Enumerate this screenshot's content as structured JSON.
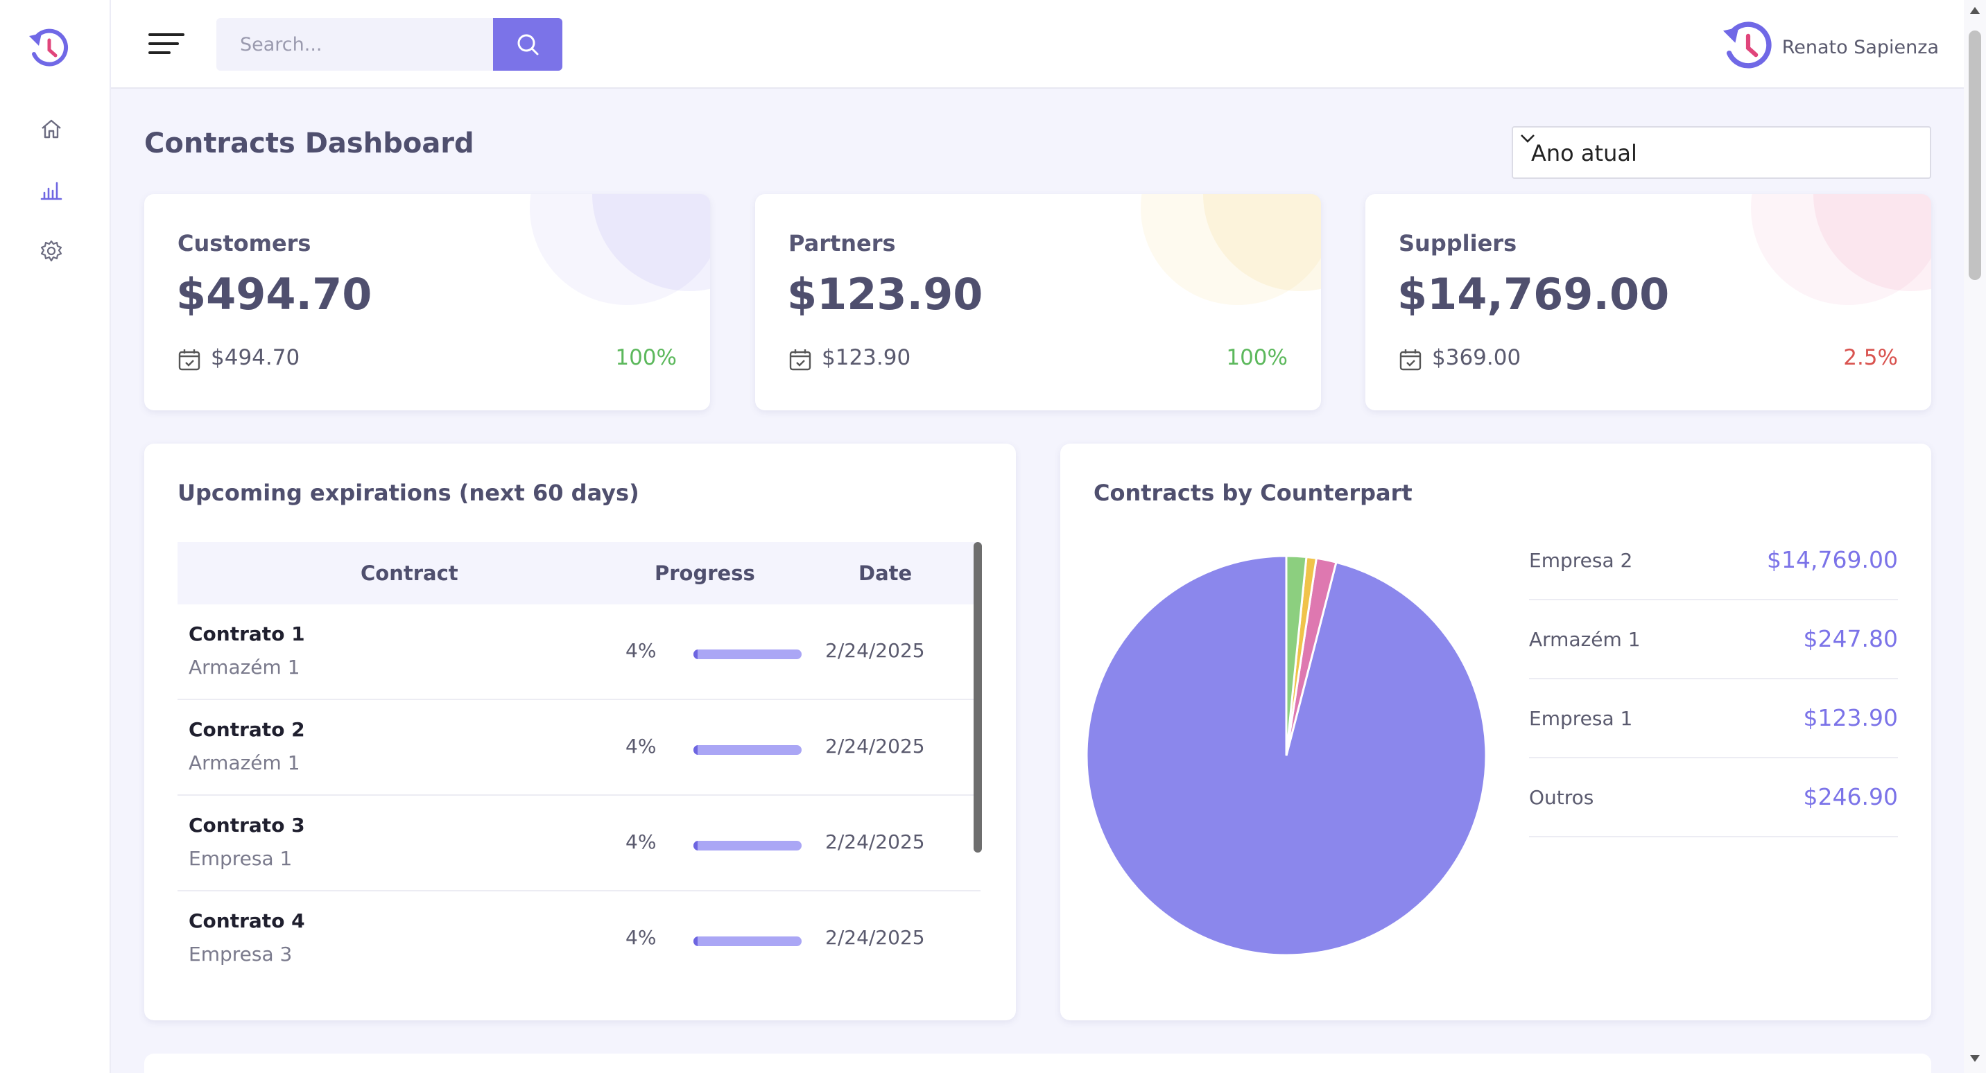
{
  "header": {
    "search_placeholder": "Search...",
    "user_name": "Renato Sapienza"
  },
  "page": {
    "title": "Contracts Dashboard",
    "period_selected": "Ano atual"
  },
  "stats": [
    {
      "label": "Customers",
      "value": "$494.70",
      "sub_value": "$494.70",
      "percent": "100%",
      "percent_color": "#5cb85c",
      "accent": "#7b73e8"
    },
    {
      "label": "Partners",
      "value": "$123.90",
      "sub_value": "$123.90",
      "percent": "100%",
      "percent_color": "#5cb85c",
      "accent": "#f0c34a"
    },
    {
      "label": "Suppliers",
      "value": "$14,769.00",
      "sub_value": "$369.00",
      "percent": "2.5%",
      "percent_color": "#d9534f",
      "accent": "#e979a8"
    }
  ],
  "expirations": {
    "title": "Upcoming expirations (next 60 days)",
    "columns": [
      "Contract",
      "Progress",
      "Date"
    ],
    "rows": [
      {
        "contract": "Contrato 1",
        "counterpart": "Armazém 1",
        "progress_label": "4%",
        "progress": 0.04,
        "date": "2/24/2025"
      },
      {
        "contract": "Contrato 2",
        "counterpart": "Armazém 1",
        "progress_label": "4%",
        "progress": 0.04,
        "date": "2/24/2025"
      },
      {
        "contract": "Contrato 3",
        "counterpart": "Empresa 1",
        "progress_label": "4%",
        "progress": 0.04,
        "date": "2/24/2025"
      },
      {
        "contract": "Contrato 4",
        "counterpart": "Empresa 3",
        "progress_label": "4%",
        "progress": 0.04,
        "date": "2/24/2025"
      }
    ]
  },
  "counterparts": {
    "title": "Contracts by Counterpart",
    "legend": [
      {
        "name": "Empresa 2",
        "value": "$14,769.00"
      },
      {
        "name": "Armazém 1",
        "value": "$247.80"
      },
      {
        "name": "Empresa 1",
        "value": "$123.90"
      },
      {
        "name": "Outros",
        "value": "$246.90"
      }
    ]
  },
  "chart_data": {
    "type": "pie",
    "title": "Contracts by Counterpart",
    "categories": [
      "Empresa 2",
      "Armazém 1",
      "Empresa 1",
      "Outros"
    ],
    "values": [
      14769.0,
      247.8,
      123.9,
      246.9
    ],
    "colors": [
      "#8b87ec",
      "#de78b0",
      "#f0c34a",
      "#8ccf7f"
    ],
    "legend_position": "right"
  }
}
